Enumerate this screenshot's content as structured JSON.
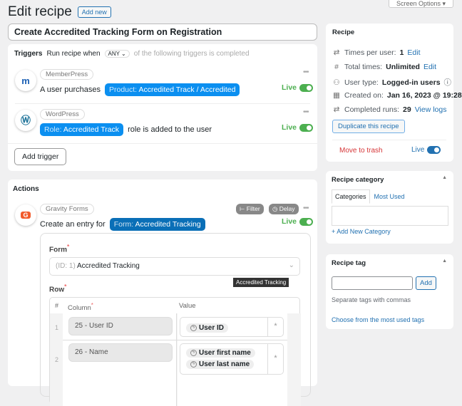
{
  "header": {
    "title": "Edit recipe",
    "add_new": "Add new",
    "screen_options": "Screen Options ▾"
  },
  "recipe_title": "Create Accredited Tracking Form on Registration",
  "triggers": {
    "heading": "Triggers",
    "run_when": "Run recipe when",
    "mode": "ANY",
    "suffix": "of the following triggers is completed",
    "items": [
      {
        "integration": "MemberPress",
        "icon": "memberpress-icon",
        "prefix": "A user purchases",
        "token_key": "Product:",
        "token_value": "Accredited Track / Accredited",
        "suffix": "",
        "status": "Live"
      },
      {
        "integration": "WordPress",
        "icon": "wordpress-icon",
        "prefix": "",
        "token_key": "Role:",
        "token_value": "Accredited Track",
        "suffix": "role is added to the user",
        "status": "Live"
      }
    ],
    "add_trigger": "Add trigger"
  },
  "actions": {
    "heading": "Actions",
    "integration": "Gravity Forms",
    "sentence": "Create an entry for",
    "token_key": "Form:",
    "token_value": "Accredited Tracking",
    "filter": "Filter",
    "delay": "Delay",
    "status": "Live",
    "form_label": "Form",
    "form_prefix": "(ID: 1)",
    "form_value": "Accredited Tracking",
    "tooltip": "Accredited Tracking",
    "row_label": "Row",
    "table": {
      "headers": [
        "#",
        "Column",
        "Value"
      ],
      "rows": [
        {
          "num": "1",
          "column": "25 - User ID",
          "values": [
            "User ID"
          ]
        },
        {
          "num": "2",
          "column": "26 - Name",
          "values": [
            "User first name",
            "User last name"
          ]
        }
      ]
    }
  },
  "sidebar": {
    "recipe": {
      "title": "Recipe",
      "times_per_user_label": "Times per user:",
      "times_per_user": "1",
      "total_label": "Total times:",
      "total": "Unlimited",
      "edit": "Edit",
      "user_type_label": "User type:",
      "user_type": "Logged-in users",
      "created_label": "Created on:",
      "created": "Jan 16, 2023 @ 19:28",
      "runs_label": "Completed runs:",
      "runs": "29",
      "view_logs": "View logs",
      "duplicate": "Duplicate this recipe",
      "trash": "Move to trash",
      "live": "Live"
    },
    "category": {
      "title": "Recipe category",
      "tab_all": "Categories",
      "tab_used": "Most Used",
      "add_new": "+ Add New Category"
    },
    "tag": {
      "title": "Recipe tag",
      "input": "",
      "add": "Add",
      "hint": "Separate tags with commas",
      "choose": "Choose from the most used tags"
    }
  }
}
